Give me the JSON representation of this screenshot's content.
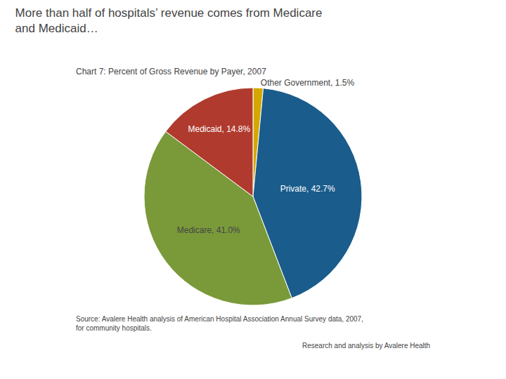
{
  "chart_data": {
    "type": "pie",
    "title": "More than half of hospitals’ revenue comes from Medicare\nand Medicaid…",
    "subtitle": "Chart 7: Percent of Gross Revenue by Payer, 2007",
    "categories": [
      "Other Government",
      "Private",
      "Medicare",
      "Medicaid"
    ],
    "values": [
      1.5,
      42.7,
      41.0,
      14.8
    ],
    "value_labels": [
      "Other Government, 1.5%",
      "Private, 42.7%",
      "Medicare, 41.0%",
      "Medicaid, 14.8%"
    ],
    "colors": [
      "#d4a800",
      "#1a5c8c",
      "#7a9a3a",
      "#b03a2e"
    ],
    "data_labels": true,
    "annotations": [
      "Source: Avalere Health analysis of American Hospital Association Annual Survey data, 2007,\nfor community hospitals.",
      "Research and analysis by Avalere Health"
    ]
  }
}
